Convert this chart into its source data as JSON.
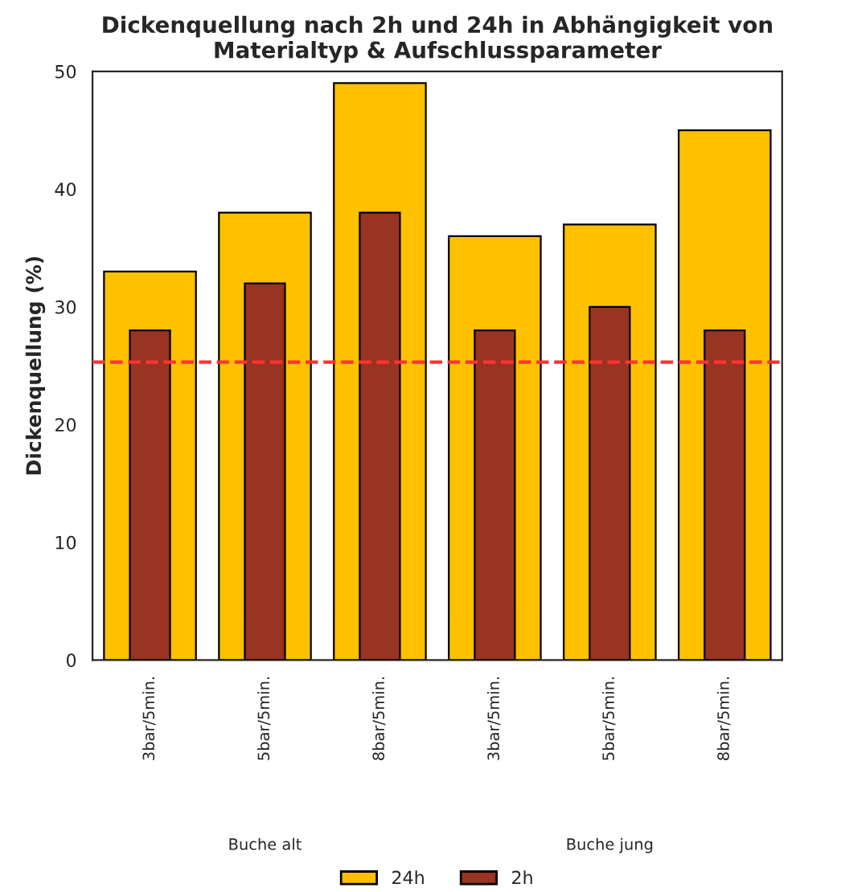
{
  "chart_data": {
    "type": "bar",
    "title": "Dickenquellung nach 2h und 24h in Abhängigkeit von\nMaterialtyp & Aufschlussparameter",
    "ylabel": "Dickenquellung (%)",
    "categories": [
      "3bar/5min.",
      "5bar/5min.",
      "8bar/5min.",
      "3bar/5min.",
      "5bar/5min.",
      "8bar/5min."
    ],
    "series": [
      {
        "name": "24h",
        "color": "#ffc000",
        "values": [
          33,
          38,
          49,
          36,
          37,
          45
        ]
      },
      {
        "name": "2h",
        "color": "#993322",
        "values": [
          28,
          32,
          38,
          28,
          30,
          28
        ]
      }
    ],
    "ylim": [
      0,
      50
    ],
    "yticks": [
      0,
      10,
      20,
      30,
      40,
      50
    ],
    "ref_lines": [
      {
        "axis": "y",
        "value": 25.3,
        "color": "#ff3333",
        "line_style": "dashed"
      }
    ],
    "annotations": [
      "Buche alt",
      "Buche jung"
    ],
    "grid": false,
    "legend": "bottom"
  }
}
